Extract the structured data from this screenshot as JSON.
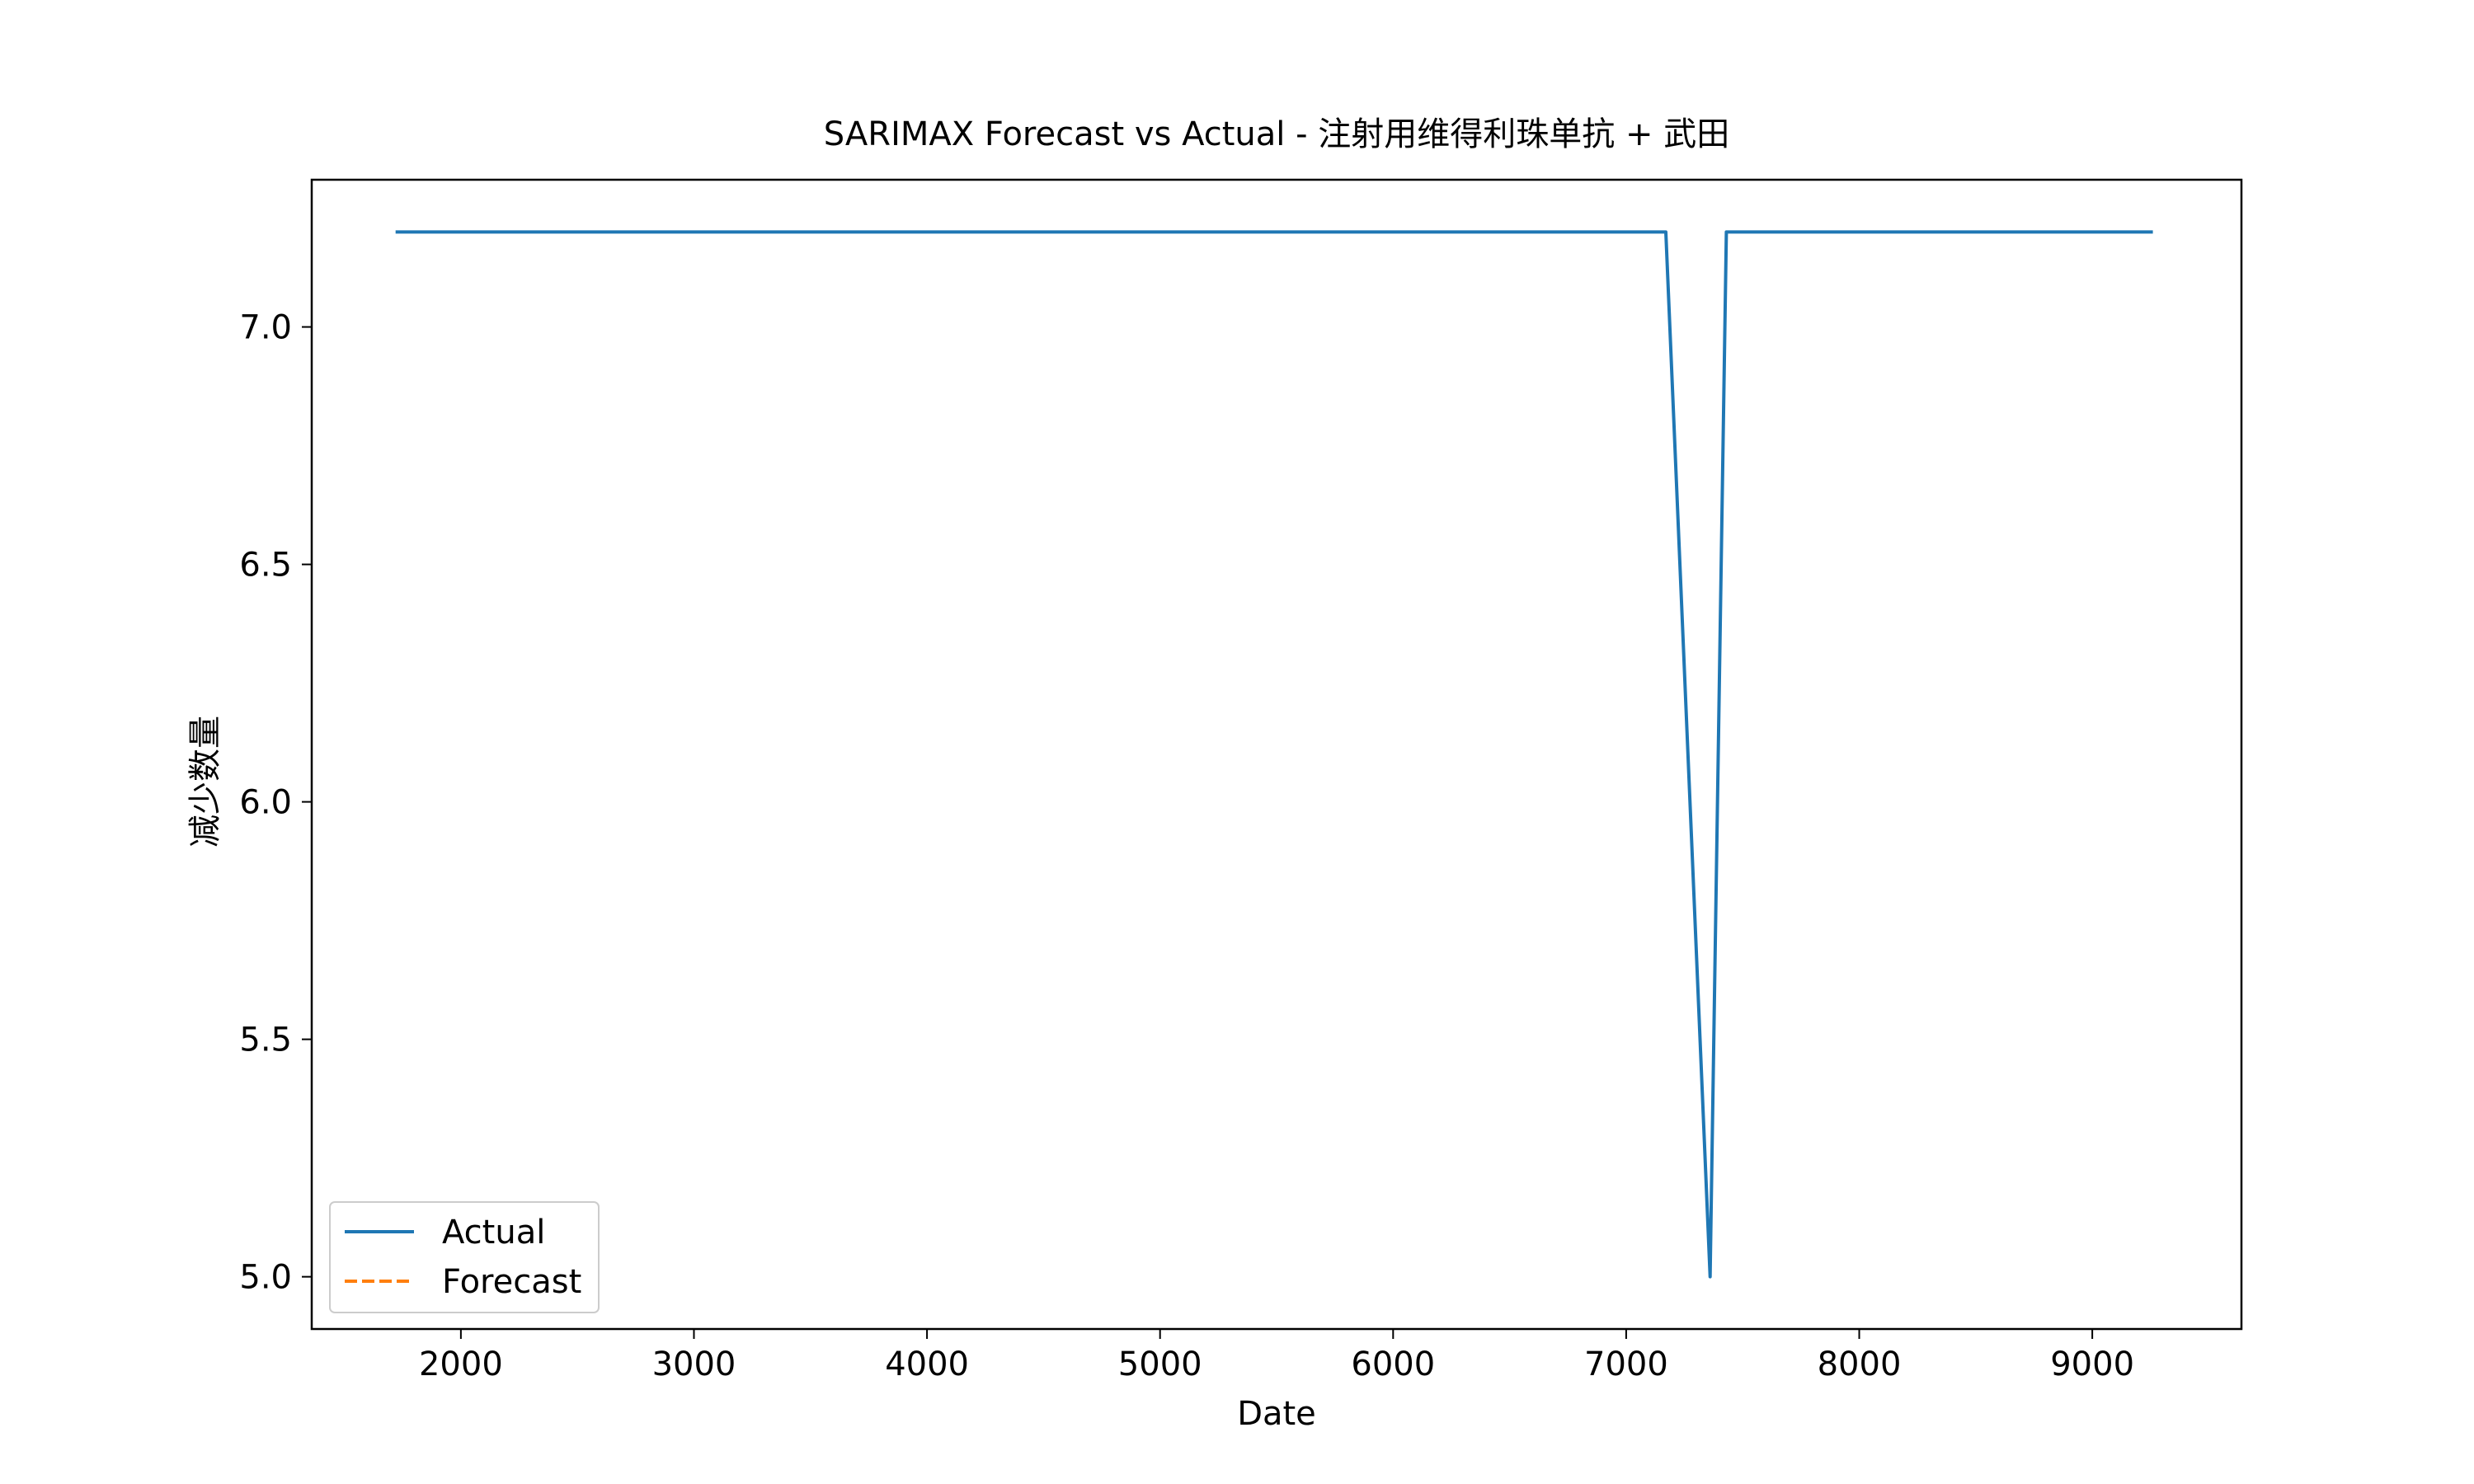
{
  "chart_data": {
    "type": "line",
    "title": "SARIMAX Forecast vs Actual - 注射用维得利珠单抗 + 武田",
    "xlabel": "Date",
    "ylabel": "减少数量",
    "xlim": [
      1360,
      9640
    ],
    "ylim": [
      4.89,
      7.31
    ],
    "x_ticks": [
      2000,
      3000,
      4000,
      5000,
      6000,
      7000,
      8000,
      9000
    ],
    "x_tick_labels": [
      "2000",
      "3000",
      "4000",
      "5000",
      "6000",
      "7000",
      "8000",
      "9000"
    ],
    "y_ticks": [
      5.0,
      5.5,
      6.0,
      6.5,
      7.0
    ],
    "y_tick_labels": [
      "5.0",
      "5.5",
      "6.0",
      "6.5",
      "7.0"
    ],
    "grid": false,
    "legend_position": "lower-left",
    "series": [
      {
        "name": "Actual",
        "color": "#1f77b4",
        "style": "solid",
        "x": [
          1720,
          7170,
          7360,
          7430,
          9260
        ],
        "y": [
          7.2,
          7.2,
          5.0,
          7.2,
          7.2
        ]
      },
      {
        "name": "Forecast",
        "color": "#ff7f0e",
        "style": "dashed",
        "x": [],
        "y": []
      }
    ]
  }
}
